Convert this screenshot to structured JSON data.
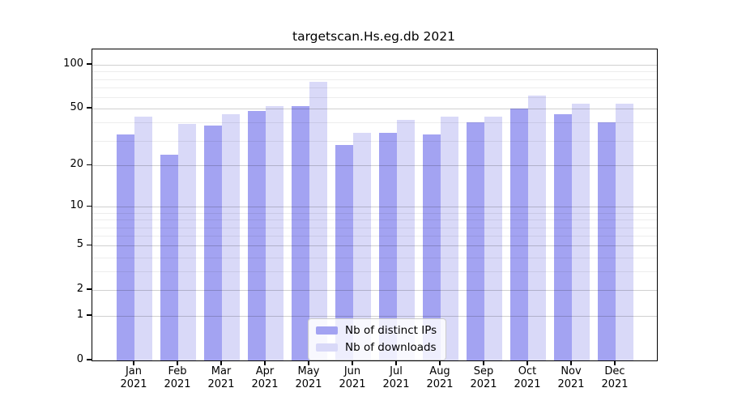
{
  "title": "targetscan.Hs.eg.db 2021",
  "legend": {
    "position": "lower center",
    "items": [
      {
        "label": "Nb of distinct IPs",
        "color": "#a3a3f2"
      },
      {
        "label": "Nb of downloads",
        "color": "#d9d9f8"
      }
    ]
  },
  "chart_data": {
    "type": "bar",
    "title": "targetscan.Hs.eg.db 2021",
    "xlabel": "",
    "ylabel": "",
    "yscale": "log1p",
    "grid": true,
    "legend_position": "lower center",
    "categories": [
      "Jan 2021",
      "Feb 2021",
      "Mar 2021",
      "Apr 2021",
      "May 2021",
      "Jun 2021",
      "Jul 2021",
      "Aug 2021",
      "Sep 2021",
      "Oct 2021",
      "Nov 2021",
      "Dec 2021"
    ],
    "series": [
      {
        "name": "Nb of distinct IPs",
        "color": "#a3a3f2",
        "values": [
          33,
          24,
          38,
          48,
          52,
          28,
          34,
          33,
          40,
          50,
          46,
          40
        ]
      },
      {
        "name": "Nb of downloads",
        "color": "#d9d9f8",
        "values": [
          44,
          39,
          46,
          52,
          77,
          34,
          42,
          44,
          44,
          62,
          54,
          54
        ]
      }
    ],
    "y_ticks": [
      0,
      1,
      2,
      5,
      10,
      20,
      50,
      100
    ],
    "y_minor_gridlines": [
      3,
      4,
      6,
      7,
      8,
      9,
      30,
      40,
      60,
      70,
      80,
      90
    ],
    "ylim": [
      0,
      128
    ]
  },
  "colors": {
    "background": "#ffffff",
    "axis": "#000000",
    "grid_major": "#d1d1d1",
    "grid_minor": "#ededed",
    "bar_distinct_ips": "#a3a3f2",
    "bar_downloads": "#d9d9f8"
  }
}
